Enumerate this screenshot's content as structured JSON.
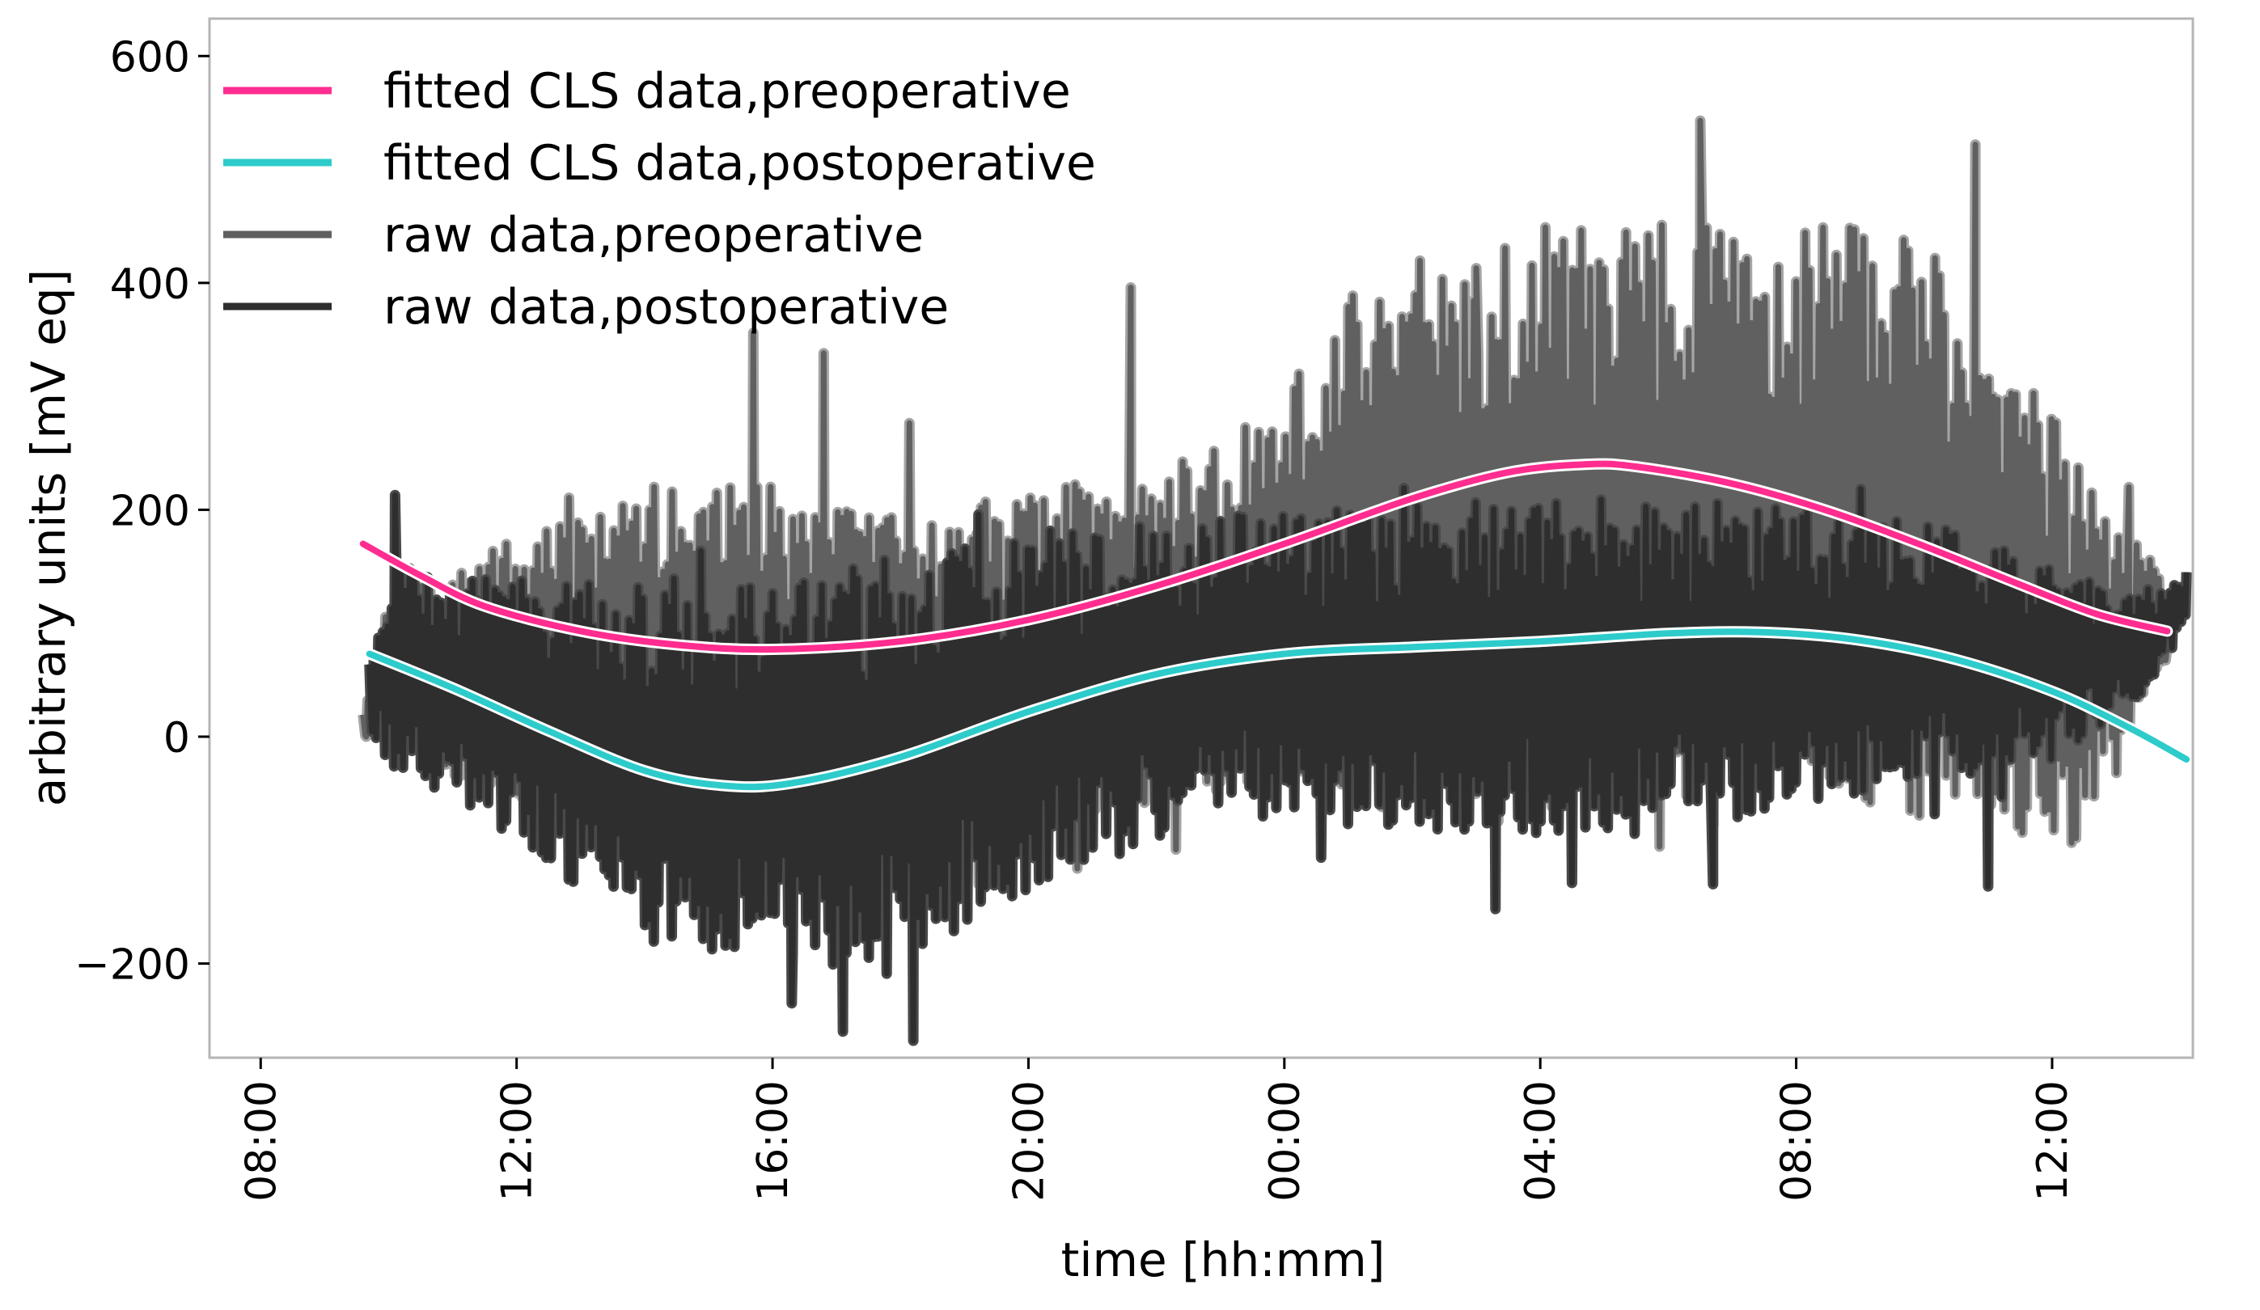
{
  "chart_data": {
    "type": "line",
    "title": "",
    "xlabel": "time [hh:mm]",
    "ylabel": "arbitrary units [mV eq]",
    "x_unit": "hours since 08:00 (day 1)",
    "xlim": [
      -0.8,
      30.2
    ],
    "ylim": [
      -283,
      633
    ],
    "grid": false,
    "legend_position": "top-left",
    "yticks": [
      -200,
      0,
      200,
      400,
      600
    ],
    "ytick_labels": [
      "−200",
      "0",
      "200",
      "400",
      "600"
    ],
    "xticks": [
      0,
      4,
      8,
      12,
      16,
      20,
      24,
      28
    ],
    "xtick_labels": [
      "08:00",
      "12:00",
      "16:00",
      "20:00",
      "00:00",
      "04:00",
      "08:00",
      "12:00"
    ],
    "series": [
      {
        "name": "fitted CLS data,preoperative",
        "kind": "fitted",
        "color": "#ff2d8f",
        "halo": "#ffffff",
        "points": [
          [
            1.6,
            170
          ],
          [
            2.5,
            142
          ],
          [
            3.5,
            115
          ],
          [
            5,
            93
          ],
          [
            6.5,
            81
          ],
          [
            8,
            77
          ],
          [
            10,
            84
          ],
          [
            12,
            103
          ],
          [
            14,
            133
          ],
          [
            16,
            170
          ],
          [
            18,
            210
          ],
          [
            19.5,
            233
          ],
          [
            20.7,
            240
          ],
          [
            21.5,
            238
          ],
          [
            23,
            223
          ],
          [
            24.5,
            199
          ],
          [
            26,
            168
          ],
          [
            27.5,
            134
          ],
          [
            28.7,
            108
          ],
          [
            29.8,
            93
          ]
        ]
      },
      {
        "name": "fitted CLS data,postoperative",
        "kind": "fitted",
        "color": "#2ecbcb",
        "halo": "#ffffff",
        "points": [
          [
            1.7,
            73
          ],
          [
            3,
            43
          ],
          [
            4.5,
            5
          ],
          [
            6,
            -30
          ],
          [
            7.2,
            -43
          ],
          [
            8.3,
            -41
          ],
          [
            10,
            -18
          ],
          [
            12,
            22
          ],
          [
            14,
            55
          ],
          [
            16,
            73
          ],
          [
            18,
            79
          ],
          [
            20,
            84
          ],
          [
            22,
            91
          ],
          [
            23.5,
            92
          ],
          [
            25,
            85
          ],
          [
            26.5,
            68
          ],
          [
            28,
            40
          ],
          [
            29.2,
            8
          ],
          [
            30.1,
            -20
          ]
        ]
      },
      {
        "name": "raw data,preoperative",
        "kind": "raw",
        "color": "#606060",
        "halo": "#a5a5a5",
        "range": [
          1.6,
          29.8
        ],
        "seed": 7,
        "spikes": [
          [
            1.65,
            0
          ],
          [
            1.75,
            35
          ],
          [
            7.7,
            356
          ],
          [
            8.8,
            338
          ],
          [
            13.6,
            396
          ],
          [
            19,
            413
          ],
          [
            22.5,
            543
          ],
          [
            26.8,
            522
          ],
          [
            29.2,
            220
          ],
          [
            29.8,
            80
          ]
        ],
        "envelope_upper": [
          [
            1.6,
            20
          ],
          [
            2,
            120
          ],
          [
            4,
            175
          ],
          [
            6,
            220
          ],
          [
            8,
            230
          ],
          [
            10,
            195
          ],
          [
            12,
            215
          ],
          [
            14,
            245
          ],
          [
            15.5,
            260
          ],
          [
            16.2,
            320
          ],
          [
            17,
            400
          ],
          [
            18,
            430
          ],
          [
            20,
            450
          ],
          [
            22,
            465
          ],
          [
            24,
            460
          ],
          [
            26,
            440
          ],
          [
            27.5,
            340
          ],
          [
            28.5,
            230
          ],
          [
            29.8,
            140
          ]
        ],
        "envelope_lower": [
          [
            1.6,
            0
          ],
          [
            2,
            -10
          ],
          [
            4,
            -60
          ],
          [
            6,
            -80
          ],
          [
            8,
            -140
          ],
          [
            10,
            -100
          ],
          [
            12,
            -75
          ],
          [
            14,
            -60
          ],
          [
            15.5,
            -40
          ],
          [
            16.5,
            -60
          ],
          [
            18,
            -80
          ],
          [
            20,
            -75
          ],
          [
            22,
            -60
          ],
          [
            24,
            -60
          ],
          [
            26,
            -70
          ],
          [
            27.5,
            -85
          ],
          [
            28.5,
            -100
          ],
          [
            29.5,
            30
          ],
          [
            29.8,
            70
          ]
        ]
      },
      {
        "name": "raw data,postoperative",
        "kind": "raw",
        "color": "#2e2e2e",
        "halo": "#4a4a4a",
        "range": [
          1.7,
          30.1
        ],
        "seed": 19,
        "spikes": [
          [
            2.1,
            213
          ],
          [
            8.3,
            -235
          ],
          [
            9.1,
            -260
          ],
          [
            10.2,
            -268
          ],
          [
            19.3,
            -152
          ],
          [
            22.7,
            -130
          ],
          [
            27,
            -132
          ],
          [
            29.5,
            130
          ],
          [
            30.1,
            145
          ]
        ],
        "envelope_upper": [
          [
            1.7,
            70
          ],
          [
            2,
            150
          ],
          [
            4,
            140
          ],
          [
            6,
            130
          ],
          [
            8,
            130
          ],
          [
            10,
            160
          ],
          [
            12,
            175
          ],
          [
            14,
            190
          ],
          [
            16,
            200
          ],
          [
            18,
            205
          ],
          [
            20,
            210
          ],
          [
            22,
            210
          ],
          [
            24,
            200
          ],
          [
            26,
            190
          ],
          [
            28,
            150
          ],
          [
            29.5,
            120
          ],
          [
            30.1,
            145
          ]
        ],
        "envelope_lower": [
          [
            1.7,
            -10
          ],
          [
            2,
            -25
          ],
          [
            4,
            -90
          ],
          [
            6,
            -180
          ],
          [
            8,
            -200
          ],
          [
            10,
            -200
          ],
          [
            12,
            -140
          ],
          [
            14,
            -90
          ],
          [
            16,
            -70
          ],
          [
            18,
            -80
          ],
          [
            20,
            -90
          ],
          [
            22,
            -85
          ],
          [
            24,
            -60
          ],
          [
            26,
            -40
          ],
          [
            28,
            -20
          ],
          [
            29.5,
            40
          ],
          [
            30.1,
            100
          ]
        ]
      }
    ]
  }
}
